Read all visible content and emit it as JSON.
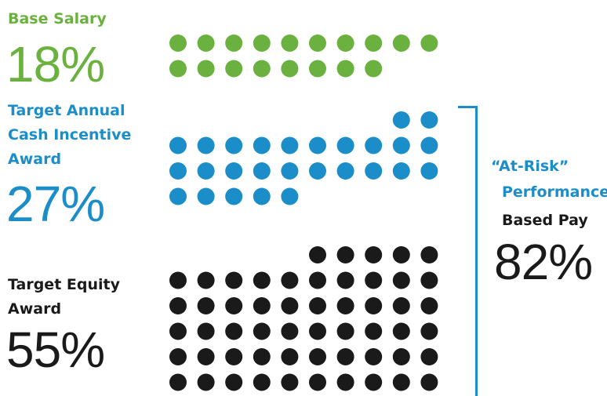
{
  "chart_data": {
    "type": "dot-matrix",
    "unit": "1 dot = 1%",
    "segments": [
      {
        "label": [
          "Base Salary"
        ],
        "value": 18,
        "value_label": "18%",
        "color": "#6bb13f"
      },
      {
        "label": [
          "Target Annual",
          "Cash Incentive",
          "Award"
        ],
        "value": 27,
        "value_label": "27%",
        "color": "#1b8ec9"
      },
      {
        "label": [
          "Target Equity",
          "Award"
        ],
        "value": 55,
        "value_label": "55%",
        "color": "#1a1a1a"
      }
    ],
    "bracket": {
      "lines": [
        "“At-Risk”",
        "Performance-",
        "Based Pay"
      ],
      "value": 82,
      "value_label": "82%",
      "spans": [
        "Target Annual Cash Incentive Award",
        "Target Equity Award"
      ]
    }
  }
}
